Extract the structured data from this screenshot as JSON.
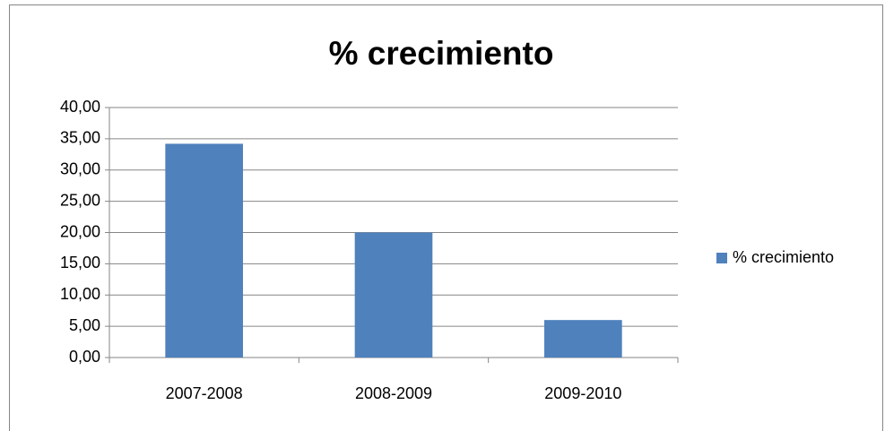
{
  "chart_data": {
    "type": "bar",
    "title": "% crecimiento",
    "categories": [
      "2007-2008",
      "2008-2009",
      "2009-2010"
    ],
    "series": [
      {
        "name": "% crecimiento",
        "color": "#4f81bd",
        "values": [
          34.2,
          20.0,
          6.0
        ]
      }
    ],
    "ylim": [
      0,
      40
    ],
    "yticks": [
      {
        "value": 0,
        "label": "0,00"
      },
      {
        "value": 5,
        "label": "5,00"
      },
      {
        "value": 10,
        "label": "10,00"
      },
      {
        "value": 15,
        "label": "15,00"
      },
      {
        "value": 20,
        "label": "20,00"
      },
      {
        "value": 25,
        "label": "25,00"
      },
      {
        "value": 30,
        "label": "30,00"
      },
      {
        "value": 35,
        "label": "35,00"
      },
      {
        "value": 40,
        "label": "40,00"
      }
    ],
    "grid": true,
    "legend": "right"
  }
}
